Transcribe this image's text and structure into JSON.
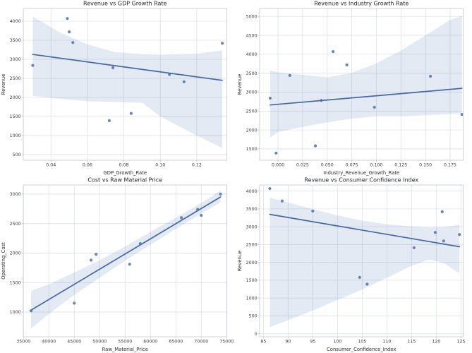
{
  "figure": {
    "background": "#ffffff",
    "rows": 2,
    "cols": 2
  },
  "theme": {
    "point_color": "#4c72b0",
    "point_opacity": 0.85,
    "line_color": "#4568a4",
    "band_color": "#4c72b0",
    "band_opacity": 0.15,
    "grid_color": "#dce1ea",
    "spine_color": "#c9ced7",
    "tick_mark_color": "#b7bcc5",
    "tick_color": "#3a3a3a",
    "label_color": "#2b2b2b",
    "title_color": "#262626"
  },
  "chart_data": [
    {
      "type": "scatter",
      "title": "Revenue vs GDP Growth Rate",
      "xlabel": "GDP_Growth_Rate",
      "ylabel": "Revenue",
      "legend": "none",
      "grid": true,
      "regression": true,
      "ci": 95,
      "x": [
        0.03,
        0.049,
        0.05,
        0.052,
        0.074,
        0.072,
        0.084,
        0.105,
        0.113,
        0.134
      ],
      "y": [
        2840,
        4070,
        3720,
        3440,
        2780,
        1390,
        1580,
        2600,
        2410,
        3420
      ],
      "xlim": [
        0.0248,
        0.1365
      ],
      "ylim": [
        351,
        4333
      ],
      "xticks": [
        0.04,
        0.06,
        0.08,
        0.1,
        0.12
      ],
      "xtick_labels": [
        "0.04",
        "0.06",
        "0.08",
        "0.10",
        "0.12"
      ],
      "yticks": [
        500,
        1000,
        1500,
        2000,
        2500,
        3000,
        3500,
        4000
      ],
      "ytick_labels": [
        "500",
        "1000",
        "1500",
        "2000",
        "2500",
        "3000",
        "3500",
        "4000"
      ],
      "ci_band": {
        "x": [
          0.03,
          0.045,
          0.06,
          0.075,
          0.09,
          0.1,
          0.12,
          0.134
        ],
        "upper": [
          4120,
          3700,
          3390,
          3190,
          3135,
          3120,
          3150,
          3230
        ],
        "lower": [
          2040,
          1960,
          1900,
          1880,
          1860,
          1500,
          1000,
          670
        ]
      }
    },
    {
      "type": "scatter",
      "title": "Revenue vs Industry Growth Rate",
      "xlabel": "Industry_Revenue_Growth_Rate",
      "ylabel": "Revenue",
      "legend": "none",
      "grid": true,
      "regression": true,
      "ci": 95,
      "x": [
        -0.008,
        -0.002,
        0.012,
        0.038,
        0.044,
        0.056,
        0.07,
        0.098,
        0.155,
        0.187
      ],
      "y": [
        2840,
        1390,
        3440,
        1580,
        2780,
        4070,
        3720,
        2600,
        3420,
        2410
      ],
      "xlim": [
        -0.0187,
        0.1883
      ],
      "ylim": [
        1200,
        5210
      ],
      "xticks": [
        0.0,
        0.025,
        0.05,
        0.075,
        0.1,
        0.125,
        0.15,
        0.175
      ],
      "xtick_labels": [
        "0.000",
        "0.025",
        "0.050",
        "0.075",
        "0.100",
        "0.125",
        "0.150",
        "0.175"
      ],
      "yticks": [
        1500,
        2000,
        2500,
        3000,
        3500,
        4000,
        4500,
        5000
      ],
      "ytick_labels": [
        "1500",
        "2000",
        "2500",
        "3000",
        "3500",
        "4000",
        "4500",
        "5000"
      ],
      "ci_band": {
        "x": [
          -0.008,
          0.0,
          0.025,
          0.05,
          0.075,
          0.1,
          0.125,
          0.15,
          0.175,
          0.187
        ],
        "upper": [
          3570,
          3520,
          3460,
          3390,
          3510,
          3760,
          4100,
          4500,
          4910,
          5010
        ],
        "lower": [
          1800,
          1950,
          2080,
          2200,
          2300,
          2360,
          2360,
          2390,
          2420,
          2440
        ]
      }
    },
    {
      "type": "scatter",
      "title": "Cost vs Raw Material Price",
      "xlabel": "Raw_Material_Price",
      "ylabel": "Operating_Cost",
      "legend": "none",
      "grid": true,
      "regression": true,
      "ci": 95,
      "x": [
        36500,
        45000,
        48300,
        49300,
        55900,
        58000,
        66100,
        69300,
        70000,
        73800
      ],
      "y": [
        1020,
        1150,
        1880,
        1980,
        1810,
        2160,
        2600,
        2740,
        2640,
        3000
      ],
      "xlim": [
        34960,
        75040
      ],
      "ylim": [
        580,
        3155
      ],
      "xticks": [
        35000,
        40000,
        45000,
        50000,
        55000,
        60000,
        65000,
        70000,
        75000
      ],
      "xtick_labels": [
        "35000",
        "40000",
        "45000",
        "50000",
        "55000",
        "60000",
        "65000",
        "70000",
        "75000"
      ],
      "yticks": [
        1000,
        1500,
        2000,
        2500,
        3000
      ],
      "ytick_labels": [
        "1000",
        "1500",
        "2000",
        "2500",
        "3000"
      ],
      "ci_band": {
        "x": [
          36500,
          40000,
          45000,
          50000,
          55000,
          60000,
          65000,
          70000,
          73800
        ],
        "upper": [
          1360,
          1470,
          1670,
          1880,
          2110,
          2360,
          2600,
          2850,
          3060
        ],
        "lower": [
          720,
          970,
          1290,
          1580,
          1870,
          2140,
          2410,
          2670,
          2860
        ]
      }
    },
    {
      "type": "scatter",
      "title": "Revenue vs Consumer Confidence Index",
      "xlabel": "Consumer_Confidence_Index",
      "ylabel": "Revenue",
      "legend": "none",
      "grid": true,
      "regression": true,
      "ci": 95,
      "x": [
        86.3,
        88.8,
        95.0,
        104.5,
        106.0,
        115.5,
        119.8,
        121.2,
        121.5,
        124.7
      ],
      "y": [
        4070,
        3720,
        3440,
        1580,
        1390,
        2410,
        2840,
        3420,
        2600,
        2780
      ],
      "xlim": [
        84.24,
        125.45
      ],
      "ylim": [
        -85,
        4170
      ],
      "xticks": [
        85,
        90,
        95,
        100,
        105,
        110,
        115,
        120,
        125
      ],
      "xtick_labels": [
        "85",
        "90",
        "95",
        "100",
        "105",
        "110",
        "115",
        "120",
        "125"
      ],
      "yticks": [
        0,
        500,
        1000,
        1500,
        2000,
        2500,
        3000,
        3500,
        4000
      ],
      "ytick_labels": [
        "0",
        "500",
        "1000",
        "1500",
        "2000",
        "2500",
        "3000",
        "3500",
        "4000"
      ],
      "ci_band": {
        "x": [
          86.3,
          90,
          95,
          100,
          105,
          110,
          115,
          118.5,
          121.5,
          124.7
        ],
        "upper": [
          3815,
          3680,
          3490,
          3320,
          3170,
          3070,
          3010,
          2980,
          2985,
          3060
        ],
        "lower": [
          185,
          380,
          650,
          945,
          1240,
          1570,
          1900,
          2080,
          1980,
          1690
        ]
      }
    }
  ]
}
